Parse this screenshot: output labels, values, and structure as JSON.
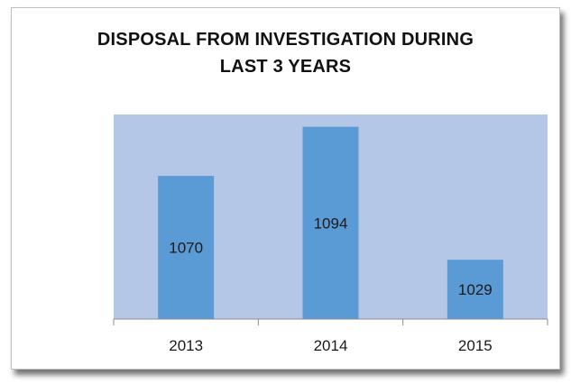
{
  "chart_data": {
    "type": "bar",
    "title_lines": [
      "DISPOSAL FROM INVESTIGATION DURING",
      "LAST 3 YEARS"
    ],
    "categories": [
      "2013",
      "2014",
      "2015"
    ],
    "values": [
      1070,
      1094,
      1029
    ],
    "xlabel": "",
    "ylabel": "",
    "ylim": [
      1000,
      1100
    ],
    "grid": false,
    "legend": "none",
    "colors": {
      "plot_area": "#b4c7e7",
      "bar": "#5b9bd5",
      "axis": "#8c8c8c"
    }
  }
}
